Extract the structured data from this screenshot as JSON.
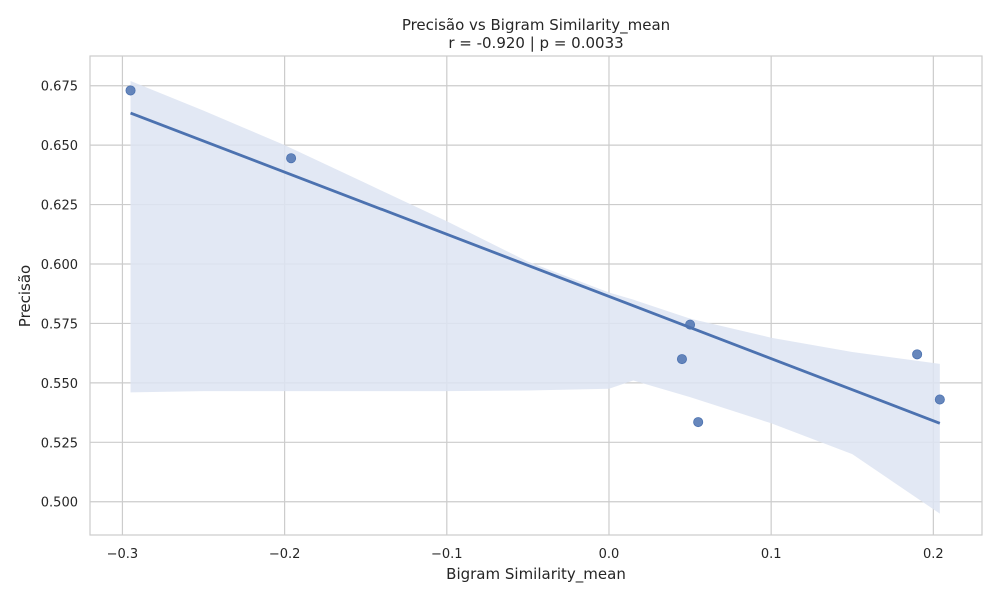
{
  "chart_data": {
    "type": "scatter",
    "title": "Precisão vs Bigram Similarity_mean",
    "subtitle": "r = -0.920  |  p = 0.0033",
    "xlabel": "Bigram Similarity_mean",
    "ylabel": "Precisão",
    "xlim": [
      -0.32,
      0.23
    ],
    "ylim": [
      0.486,
      0.6875
    ],
    "x_ticks": [
      -0.3,
      -0.2,
      -0.1,
      0.0,
      0.1,
      0.2
    ],
    "x_tick_labels": [
      "−0.3",
      "−0.2",
      "−0.1",
      "0.0",
      "0.1",
      "0.2"
    ],
    "y_ticks": [
      0.5,
      0.525,
      0.55,
      0.575,
      0.6,
      0.625,
      0.65,
      0.675
    ],
    "y_tick_labels": [
      "0.500",
      "0.525",
      "0.550",
      "0.575",
      "0.600",
      "0.625",
      "0.650",
      "0.675"
    ],
    "grid": true,
    "points": [
      {
        "x": -0.295,
        "y": 0.673
      },
      {
        "x": -0.196,
        "y": 0.6445
      },
      {
        "x": 0.045,
        "y": 0.56
      },
      {
        "x": 0.05,
        "y": 0.5745
      },
      {
        "x": 0.055,
        "y": 0.5335
      },
      {
        "x": 0.19,
        "y": 0.562
      },
      {
        "x": 0.204,
        "y": 0.543
      }
    ],
    "regression_line": [
      {
        "x": -0.295,
        "y": 0.6635
      },
      {
        "x": 0.204,
        "y": 0.533
      }
    ],
    "confidence_band": [
      {
        "x": -0.295,
        "lower": 0.546,
        "upper": 0.677
      },
      {
        "x": -0.25,
        "lower": 0.5465,
        "upper": 0.6645
      },
      {
        "x": -0.2,
        "lower": 0.5465,
        "upper": 0.65
      },
      {
        "x": -0.15,
        "lower": 0.5465,
        "upper": 0.634
      },
      {
        "x": -0.1,
        "lower": 0.5465,
        "upper": 0.618
      },
      {
        "x": -0.05,
        "lower": 0.5468,
        "upper": 0.601
      },
      {
        "x": 0.0,
        "lower": 0.5475,
        "upper": 0.588
      },
      {
        "x": 0.015,
        "lower": 0.551,
        "upper": 0.585
      },
      {
        "x": 0.05,
        "lower": 0.544,
        "upper": 0.577
      },
      {
        "x": 0.1,
        "lower": 0.533,
        "upper": 0.569
      },
      {
        "x": 0.15,
        "lower": 0.52,
        "upper": 0.563
      },
      {
        "x": 0.204,
        "lower": 0.495,
        "upper": 0.558
      }
    ],
    "colors": {
      "point": "#4c72b0",
      "line": "#4c72b0",
      "band": "#dde4f2",
      "grid": "#cccccc",
      "axes_edge": "#cccccc"
    }
  }
}
